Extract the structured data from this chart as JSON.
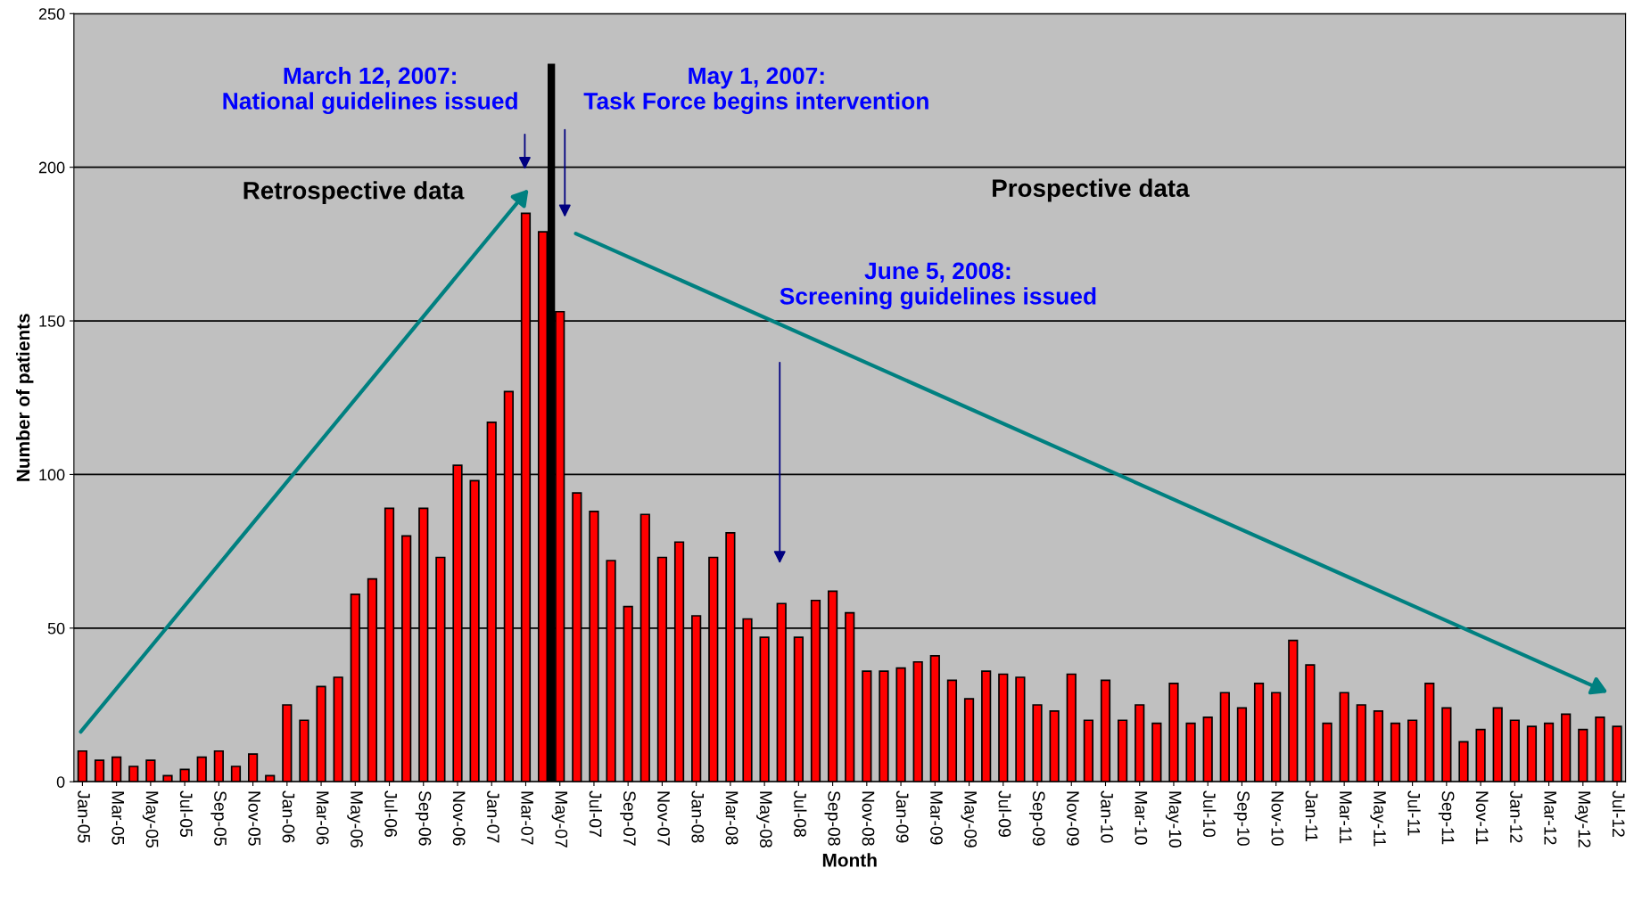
{
  "chart_data": {
    "type": "bar",
    "xlabel": "Month",
    "ylabel": "Number of patients",
    "categories": [
      "Jan-05",
      null,
      "Mar-05",
      null,
      "May-05",
      null,
      "Jul-05",
      null,
      "Sep-05",
      null,
      "Nov-05",
      null,
      "Jan-06",
      null,
      "Mar-06",
      null,
      "May-06",
      null,
      "Jul-06",
      null,
      "Sep-06",
      null,
      "Nov-06",
      null,
      "Jan-07",
      null,
      "Mar-07",
      null,
      "May-07",
      null,
      "Jul-07",
      null,
      "Sep-07",
      null,
      "Nov-07",
      null,
      "Jan-08",
      null,
      "Mar-08",
      null,
      "May-08",
      null,
      "Jul-08",
      null,
      "Sep-08",
      null,
      "Nov-08",
      null,
      "Jan-09",
      null,
      "Mar-09",
      null,
      "May-09",
      null,
      "Jul-09",
      null,
      "Sep-09",
      null,
      "Nov-09",
      null,
      "Jan-10",
      null,
      "Mar-10",
      null,
      "May-10",
      null,
      "Jul-10",
      null,
      "Sep-10",
      null,
      "Nov-10",
      null,
      "Jan-11",
      null,
      "Mar-11",
      null,
      "May-11",
      null,
      "Jul-11",
      null,
      "Sep-11",
      null,
      "Nov-11",
      null,
      "Jan-12",
      null,
      "Mar-12",
      null,
      "May-12",
      null,
      "Jul-12"
    ],
    "values": [
      10,
      7,
      8,
      5,
      7,
      2,
      4,
      8,
      10,
      5,
      9,
      2,
      25,
      20,
      31,
      34,
      61,
      66,
      89,
      80,
      89,
      73,
      103,
      98,
      117,
      127,
      185,
      179,
      153,
      94,
      88,
      72,
      57,
      87,
      73,
      78,
      54,
      73,
      81,
      53,
      47,
      58,
      47,
      59,
      62,
      55,
      36,
      36,
      37,
      39,
      41,
      33,
      27,
      36,
      35,
      34,
      25,
      23,
      35,
      20,
      33,
      20,
      25,
      19,
      32,
      19,
      21,
      29,
      24,
      32,
      29,
      46,
      38,
      19,
      29,
      25,
      23,
      19,
      20,
      32,
      24,
      13,
      17,
      24,
      20,
      18,
      19,
      22,
      17,
      21,
      18
    ],
    "color": "#ff0000",
    "ylim": [
      0,
      250
    ],
    "yticks": [
      0,
      50,
      100,
      150,
      200,
      250
    ],
    "grid": "y",
    "ref_lines": [
      {
        "axis": "x",
        "value": "May-07",
        "color": "#000000"
      }
    ],
    "annotations": [
      "March 12, 2007:\nNational guidelines issued",
      "May 1, 2007:\nTask Force begins intervention",
      "June 5, 2008:\nScreening guidelines issued",
      "Retrospective data",
      "Prospective data"
    ]
  }
}
